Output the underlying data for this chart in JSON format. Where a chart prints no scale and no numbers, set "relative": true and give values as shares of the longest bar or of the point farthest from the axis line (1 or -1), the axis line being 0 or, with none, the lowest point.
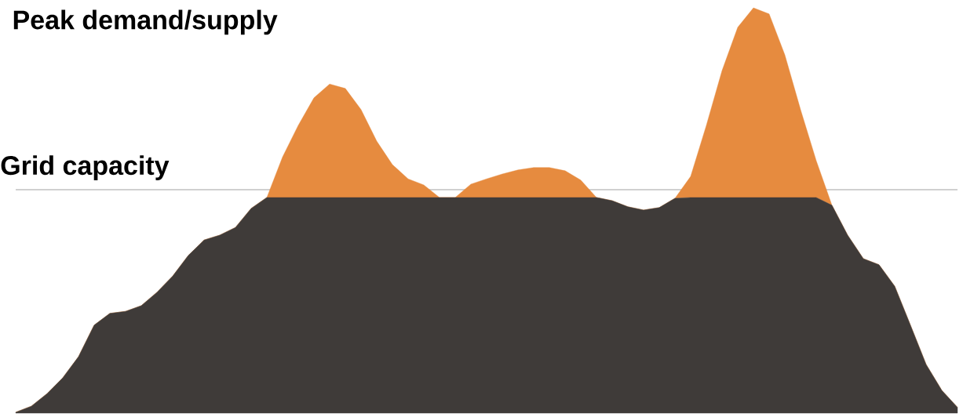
{
  "chart_data": {
    "type": "area",
    "title": "Peak demand/supply",
    "relative": true,
    "stacked": true,
    "categories": [
      null,
      null,
      null,
      null,
      null,
      null,
      null,
      null,
      null,
      null,
      null,
      null,
      null,
      null,
      null,
      null,
      null,
      null,
      null,
      null,
      null,
      null,
      null,
      null,
      null,
      null,
      null,
      null,
      null,
      null,
      null,
      null,
      null,
      null,
      null,
      null,
      null,
      null,
      null,
      null,
      null,
      null,
      null,
      null,
      null,
      null,
      null,
      null,
      null,
      null,
      null,
      null,
      null,
      null,
      null,
      null,
      null,
      null,
      null,
      null,
      null
    ],
    "series": [
      {
        "color": "#3f3b39",
        "values": [
          0.002,
          0.017,
          0.048,
          0.087,
          0.139,
          0.217,
          0.246,
          0.251,
          0.265,
          0.298,
          0.338,
          0.389,
          0.427,
          0.439,
          0.458,
          0.505,
          0.532,
          0.532,
          0.532,
          0.532,
          0.532,
          0.532,
          0.532,
          0.532,
          0.532,
          0.532,
          0.532,
          0.532,
          0.532,
          0.532,
          0.532,
          0.532,
          0.532,
          0.532,
          0.532,
          0.532,
          0.532,
          0.532,
          0.524,
          0.509,
          0.501,
          0.507,
          0.53,
          0.532,
          0.532,
          0.532,
          0.532,
          0.532,
          0.532,
          0.532,
          0.532,
          0.532,
          0.513,
          0.439,
          0.381,
          0.366,
          0.313,
          0.217,
          0.12,
          0.056,
          0.014
        ]
      },
      {
        "color": "#e68b3f",
        "values": [
          0,
          0,
          0,
          0,
          0,
          0,
          0,
          0,
          0,
          0,
          0,
          0,
          0,
          0,
          0,
          0,
          0,
          0.1,
          0.178,
          0.246,
          0.28,
          0.269,
          0.217,
          0.139,
          0.081,
          0.046,
          0.031,
          0,
          0,
          0.033,
          0.046,
          0.058,
          0.068,
          0.074,
          0.074,
          0.066,
          0.043,
          0,
          0,
          0,
          0,
          0,
          0,
          0.052,
          0.178,
          0.313,
          0.42,
          0.468,
          0.453,
          0.352,
          0.217,
          0.091,
          0,
          0,
          0,
          0,
          0,
          0,
          0,
          0,
          0
        ]
      }
    ],
    "ref_lines": [
      {
        "axis": "y",
        "value": 0.551,
        "label": "Grid capacity",
        "color": "#c0c0c0"
      }
    ]
  }
}
